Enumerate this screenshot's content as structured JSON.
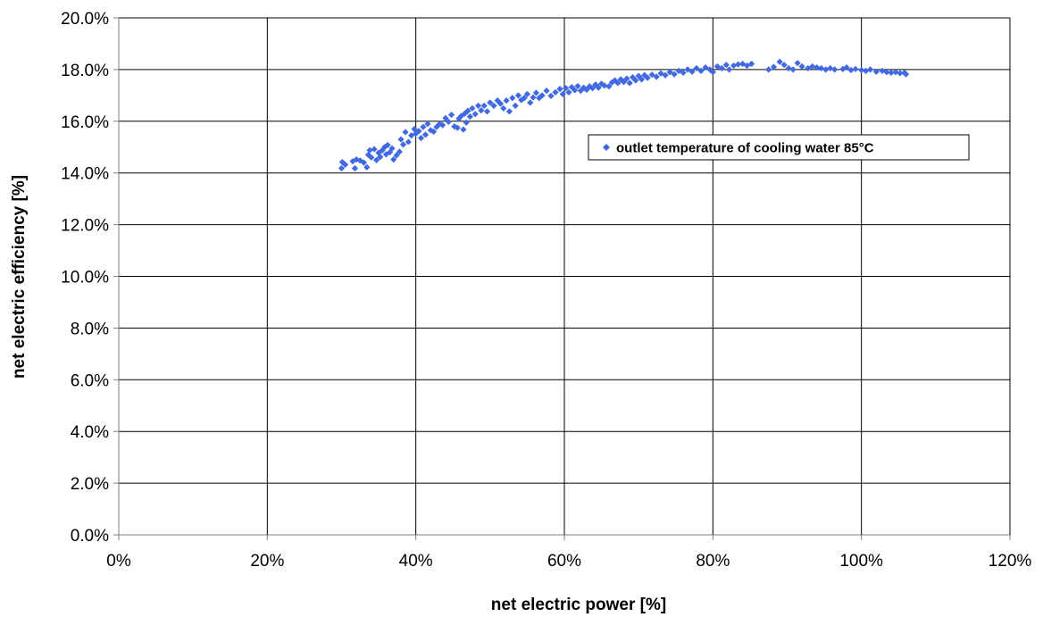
{
  "chart_data": {
    "type": "scatter",
    "title": "",
    "xlabel": "net electric power [%]",
    "ylabel": "net electric efficiency [%]",
    "xlim": [
      0,
      1.2
    ],
    "ylim": [
      0,
      0.2
    ],
    "x_ticks": [
      "0%",
      "20%",
      "40%",
      "60%",
      "80%",
      "100%",
      "120%"
    ],
    "y_ticks": [
      "0.0%",
      "2.0%",
      "4.0%",
      "6.0%",
      "8.0%",
      "10.0%",
      "12.0%",
      "14.0%",
      "16.0%",
      "18.0%",
      "20.0%"
    ],
    "grid": true,
    "legend_position": "inside-upper-right",
    "colors": {
      "marker": "#4169e1",
      "grid": "#000000",
      "axis": "#808080"
    },
    "series": [
      {
        "name": "outlet temperature of cooling water 85°C",
        "marker": "diamond",
        "points": [
          [
            0.3,
            0.1418
          ],
          [
            0.301,
            0.1442
          ],
          [
            0.305,
            0.1432
          ],
          [
            0.315,
            0.1445
          ],
          [
            0.318,
            0.1418
          ],
          [
            0.32,
            0.1452
          ],
          [
            0.325,
            0.1448
          ],
          [
            0.33,
            0.144
          ],
          [
            0.334,
            0.1422
          ],
          [
            0.336,
            0.147
          ],
          [
            0.338,
            0.1488
          ],
          [
            0.34,
            0.146
          ],
          [
            0.344,
            0.1492
          ],
          [
            0.347,
            0.145
          ],
          [
            0.35,
            0.1478
          ],
          [
            0.352,
            0.1462
          ],
          [
            0.355,
            0.1488
          ],
          [
            0.358,
            0.15
          ],
          [
            0.36,
            0.1472
          ],
          [
            0.362,
            0.1508
          ],
          [
            0.365,
            0.148
          ],
          [
            0.368,
            0.1495
          ],
          [
            0.37,
            0.1452
          ],
          [
            0.374,
            0.1468
          ],
          [
            0.378,
            0.1482
          ],
          [
            0.38,
            0.153
          ],
          [
            0.383,
            0.151
          ],
          [
            0.386,
            0.1558
          ],
          [
            0.39,
            0.152
          ],
          [
            0.394,
            0.1545
          ],
          [
            0.398,
            0.157
          ],
          [
            0.4,
            0.1552
          ],
          [
            0.404,
            0.1562
          ],
          [
            0.407,
            0.1535
          ],
          [
            0.41,
            0.1578
          ],
          [
            0.413,
            0.1548
          ],
          [
            0.416,
            0.159
          ],
          [
            0.42,
            0.1565
          ],
          [
            0.424,
            0.156
          ],
          [
            0.428,
            0.1578
          ],
          [
            0.432,
            0.159
          ],
          [
            0.436,
            0.1585
          ],
          [
            0.44,
            0.1612
          ],
          [
            0.444,
            0.1598
          ],
          [
            0.448,
            0.1625
          ],
          [
            0.452,
            0.158
          ],
          [
            0.456,
            0.1575
          ],
          [
            0.458,
            0.161
          ],
          [
            0.461,
            0.162
          ],
          [
            0.464,
            0.1568
          ],
          [
            0.466,
            0.163
          ],
          [
            0.468,
            0.1595
          ],
          [
            0.47,
            0.164
          ],
          [
            0.473,
            0.1618
          ],
          [
            0.476,
            0.165
          ],
          [
            0.48,
            0.1628
          ],
          [
            0.484,
            0.166
          ],
          [
            0.488,
            0.1642
          ],
          [
            0.492,
            0.166
          ],
          [
            0.496,
            0.1638
          ],
          [
            0.5,
            0.1672
          ],
          [
            0.505,
            0.166
          ],
          [
            0.51,
            0.168
          ],
          [
            0.514,
            0.1668
          ],
          [
            0.518,
            0.165
          ],
          [
            0.522,
            0.168
          ],
          [
            0.526,
            0.1638
          ],
          [
            0.53,
            0.169
          ],
          [
            0.534,
            0.166
          ],
          [
            0.538,
            0.17
          ],
          [
            0.542,
            0.1682
          ],
          [
            0.546,
            0.169
          ],
          [
            0.55,
            0.1705
          ],
          [
            0.554,
            0.1672
          ],
          [
            0.558,
            0.1692
          ],
          [
            0.562,
            0.171
          ],
          [
            0.566,
            0.169
          ],
          [
            0.57,
            0.17
          ],
          [
            0.576,
            0.1718
          ],
          [
            0.582,
            0.1698
          ],
          [
            0.588,
            0.1712
          ],
          [
            0.594,
            0.1725
          ],
          [
            0.598,
            0.1705
          ],
          [
            0.602,
            0.1728
          ],
          [
            0.606,
            0.1712
          ],
          [
            0.61,
            0.1732
          ],
          [
            0.614,
            0.172
          ],
          [
            0.618,
            0.1736
          ],
          [
            0.622,
            0.1718
          ],
          [
            0.626,
            0.173
          ],
          [
            0.63,
            0.1722
          ],
          [
            0.634,
            0.1735
          ],
          [
            0.638,
            0.1728
          ],
          [
            0.642,
            0.1742
          ],
          [
            0.646,
            0.173
          ],
          [
            0.65,
            0.1745
          ],
          [
            0.654,
            0.1738
          ],
          [
            0.66,
            0.1735
          ],
          [
            0.664,
            0.175
          ],
          [
            0.668,
            0.1758
          ],
          [
            0.672,
            0.1748
          ],
          [
            0.676,
            0.1762
          ],
          [
            0.68,
            0.1752
          ],
          [
            0.684,
            0.1765
          ],
          [
            0.688,
            0.1748
          ],
          [
            0.692,
            0.177
          ],
          [
            0.696,
            0.1758
          ],
          [
            0.7,
            0.1775
          ],
          [
            0.704,
            0.1762
          ],
          [
            0.708,
            0.1778
          ],
          [
            0.712,
            0.1768
          ],
          [
            0.718,
            0.178
          ],
          [
            0.724,
            0.1772
          ],
          [
            0.73,
            0.1785
          ],
          [
            0.736,
            0.1778
          ],
          [
            0.742,
            0.179
          ],
          [
            0.748,
            0.1782
          ],
          [
            0.754,
            0.1795
          ],
          [
            0.76,
            0.1788
          ],
          [
            0.766,
            0.18
          ],
          [
            0.772,
            0.1792
          ],
          [
            0.778,
            0.1805
          ],
          [
            0.784,
            0.1795
          ],
          [
            0.79,
            0.1808
          ],
          [
            0.796,
            0.18
          ],
          [
            0.8,
            0.179
          ],
          [
            0.806,
            0.1812
          ],
          [
            0.812,
            0.1805
          ],
          [
            0.818,
            0.1818
          ],
          [
            0.822,
            0.18
          ],
          [
            0.828,
            0.1815
          ],
          [
            0.834,
            0.182
          ],
          [
            0.84,
            0.1822
          ],
          [
            0.846,
            0.1815
          ],
          [
            0.852,
            0.1822
          ],
          [
            0.875,
            0.18
          ],
          [
            0.882,
            0.181
          ],
          [
            0.89,
            0.183
          ],
          [
            0.896,
            0.1818
          ],
          [
            0.902,
            0.1805
          ],
          [
            0.908,
            0.18
          ],
          [
            0.914,
            0.1825
          ],
          [
            0.92,
            0.1812
          ],
          [
            0.928,
            0.1805
          ],
          [
            0.934,
            0.1812
          ],
          [
            0.94,
            0.1808
          ],
          [
            0.946,
            0.1805
          ],
          [
            0.952,
            0.18
          ],
          [
            0.958,
            0.1805
          ],
          [
            0.964,
            0.18
          ],
          [
            0.975,
            0.1802
          ],
          [
            0.98,
            0.1808
          ],
          [
            0.986,
            0.1798
          ],
          [
            0.992,
            0.1802
          ],
          [
            1.0,
            0.1798
          ],
          [
            1.006,
            0.1795
          ],
          [
            1.012,
            0.18
          ],
          [
            1.02,
            0.1792
          ],
          [
            1.028,
            0.1795
          ],
          [
            1.034,
            0.179
          ],
          [
            1.04,
            0.1788
          ],
          [
            1.046,
            0.179
          ],
          [
            1.052,
            0.1786
          ],
          [
            1.058,
            0.1788
          ],
          [
            1.06,
            0.1782
          ]
        ]
      }
    ]
  }
}
